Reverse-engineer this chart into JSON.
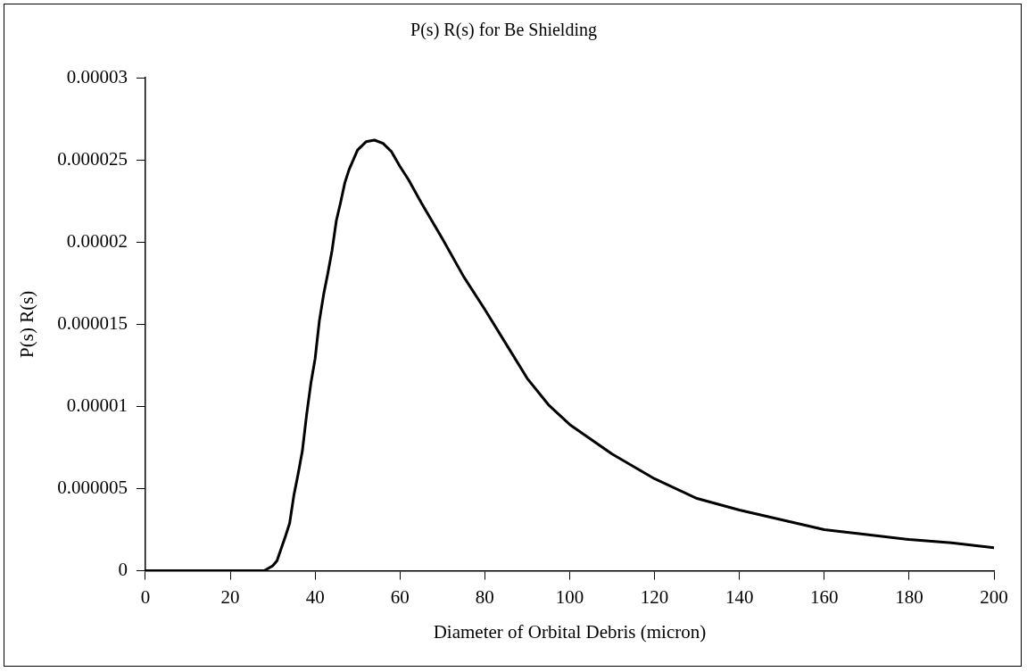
{
  "chart_data": {
    "type": "line",
    "title": "P(s) R(s) for Be Shielding",
    "xlabel": "Diameter of Orbital Debris (micron)",
    "ylabel": "P(s) R(s)",
    "xlim": [
      0,
      200
    ],
    "xticks": [
      0,
      20,
      40,
      60,
      80,
      100,
      120,
      140,
      160,
      180,
      200
    ],
    "ylim": [
      0,
      3e-05
    ],
    "yticks": [
      0,
      {
        "value": 5e-06,
        "label": "0.000005"
      },
      {
        "value": 1e-05,
        "label": "0.00001"
      },
      {
        "value": 1.5e-05,
        "label": "0.000015"
      },
      {
        "value": 2e-05,
        "label": "0.00002"
      },
      {
        "value": 2.5e-05,
        "label": "0.000025"
      },
      {
        "value": 3e-05,
        "label": "0.00003"
      }
    ],
    "grid": false,
    "legend": false,
    "marker": "none",
    "line_style": "solid",
    "series": [
      {
        "color": "#000000",
        "x": [
          0,
          10,
          20,
          28,
          30,
          31,
          33,
          34,
          35,
          36,
          37,
          38,
          39,
          40,
          41,
          42,
          43,
          44,
          45,
          46,
          47,
          48,
          49,
          50,
          52,
          54,
          56,
          58,
          60,
          62,
          65,
          70,
          75,
          80,
          85,
          90,
          95,
          100,
          110,
          120,
          130,
          140,
          150,
          160,
          170,
          180,
          190,
          200
        ],
        "values": [
          0,
          0,
          0,
          0,
          3e-07,
          6e-07,
          2.1e-06,
          2.9e-06,
          4.6e-06,
          5.9e-06,
          7.3e-06,
          9.5e-06,
          1.14e-05,
          1.29e-05,
          1.52e-05,
          1.68e-05,
          1.81e-05,
          1.95e-05,
          2.13e-05,
          2.24e-05,
          2.36e-05,
          2.44e-05,
          2.5e-05,
          2.56e-05,
          2.61e-05,
          2.62e-05,
          2.6e-05,
          2.55e-05,
          2.46e-05,
          2.38e-05,
          2.24e-05,
          2.02e-05,
          1.79e-05,
          1.59e-05,
          1.38e-05,
          1.17e-05,
          1.01e-05,
          8.9e-06,
          7.1e-06,
          5.6e-06,
          4.4e-06,
          3.7e-06,
          3.1e-06,
          2.5e-06,
          2.2e-06,
          1.9e-06,
          1.7e-06,
          1.4e-06
        ]
      }
    ]
  }
}
